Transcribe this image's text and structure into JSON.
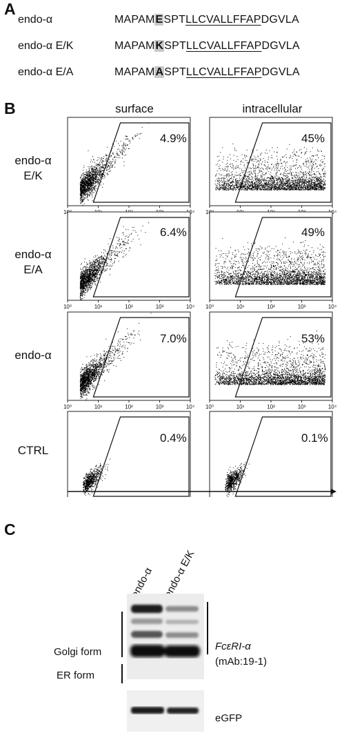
{
  "panel_a": {
    "letter": "A",
    "rows": [
      {
        "name": "endo-α",
        "pre": "MAPAM",
        "mut": "E",
        "mid": "SPT",
        "tm": "LLCVALLFFAP",
        "post": "DGVLA"
      },
      {
        "name": "endo-α E/K",
        "pre": "MAPAM",
        "mut": "K",
        "mid": "SPT",
        "tm": "LLCVALLFFAP",
        "post": "DGVLA"
      },
      {
        "name": "endo-α E/A",
        "pre": "MAPAM",
        "mut": "A",
        "mid": "SPT",
        "tm": "LLCVALLFFAP",
        "post": "DGVLA"
      }
    ]
  },
  "panel_b": {
    "letter": "B",
    "col_headers": [
      "surface",
      "intracellular"
    ],
    "rows": [
      {
        "label_line1": "endo-α",
        "label_line2": "E/K",
        "surface_pct": "4.9%",
        "intra_pct": "45%"
      },
      {
        "label_line1": "endo-α",
        "label_line2": "E/A",
        "surface_pct": "6.4%",
        "intra_pct": "49%"
      },
      {
        "label_line1": "endo-α",
        "label_line2": "",
        "surface_pct": "7.0%",
        "intra_pct": "53%"
      },
      {
        "label_line1": "CTRL",
        "label_line2": "",
        "surface_pct": "0.4%",
        "intra_pct": "0.1%"
      }
    ],
    "axis_ticks": [
      "10⁰",
      "10¹",
      "10²",
      "10³",
      "10⁴"
    ]
  },
  "panel_c": {
    "letter": "C",
    "lanes": [
      "endo-α",
      "endo-α E/K"
    ],
    "golgi_label": "Golgi form",
    "er_label": "ER form",
    "antibody_line1": "FcεRI-α",
    "antibody_line2": "(mAb:19-1)",
    "loading_label": "eGFP"
  }
}
